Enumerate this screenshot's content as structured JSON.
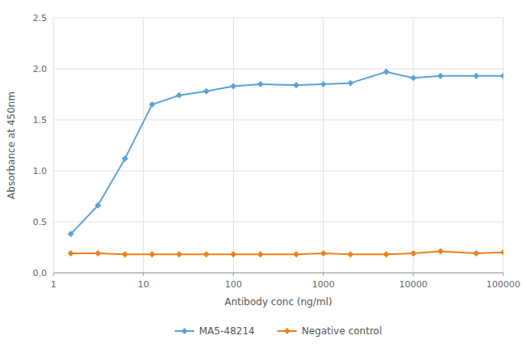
{
  "chart_data": {
    "type": "line",
    "x": [
      1.56,
      3.125,
      6.25,
      12.5,
      25,
      50,
      100,
      200,
      500,
      1000,
      2000,
      5000,
      10000,
      20000,
      50000,
      100000
    ],
    "series": [
      {
        "name": "MA5-48214",
        "color": "#5BA3D9",
        "marker": "diamond",
        "values": [
          0.38,
          0.66,
          1.12,
          1.65,
          1.74,
          1.78,
          1.83,
          1.85,
          1.84,
          1.85,
          1.86,
          1.97,
          1.91,
          1.93,
          1.93,
          1.93
        ]
      },
      {
        "name": "Negative control",
        "color": "#E8821E",
        "marker": "diamond",
        "values": [
          0.19,
          0.19,
          0.18,
          0.18,
          0.18,
          0.18,
          0.18,
          0.18,
          0.18,
          0.19,
          0.18,
          0.18,
          0.19,
          0.21,
          0.19,
          0.2
        ]
      }
    ],
    "xlabel": "Antibody conc (ng/ml)",
    "ylabel": "Absorbance at 450nm",
    "log": "x",
    "xlim": [
      1,
      100000
    ],
    "xticks": [
      1,
      10,
      100,
      1000,
      10000,
      100000
    ],
    "ylim": [
      0,
      2.5
    ],
    "yticks": [
      {
        "value": 0,
        "label": "0.0"
      },
      0.5,
      {
        "value": 1,
        "label": "1.0"
      },
      1.5,
      {
        "value": 2,
        "label": "2.0"
      },
      2.5
    ],
    "grid": true,
    "legend": "bottom"
  }
}
